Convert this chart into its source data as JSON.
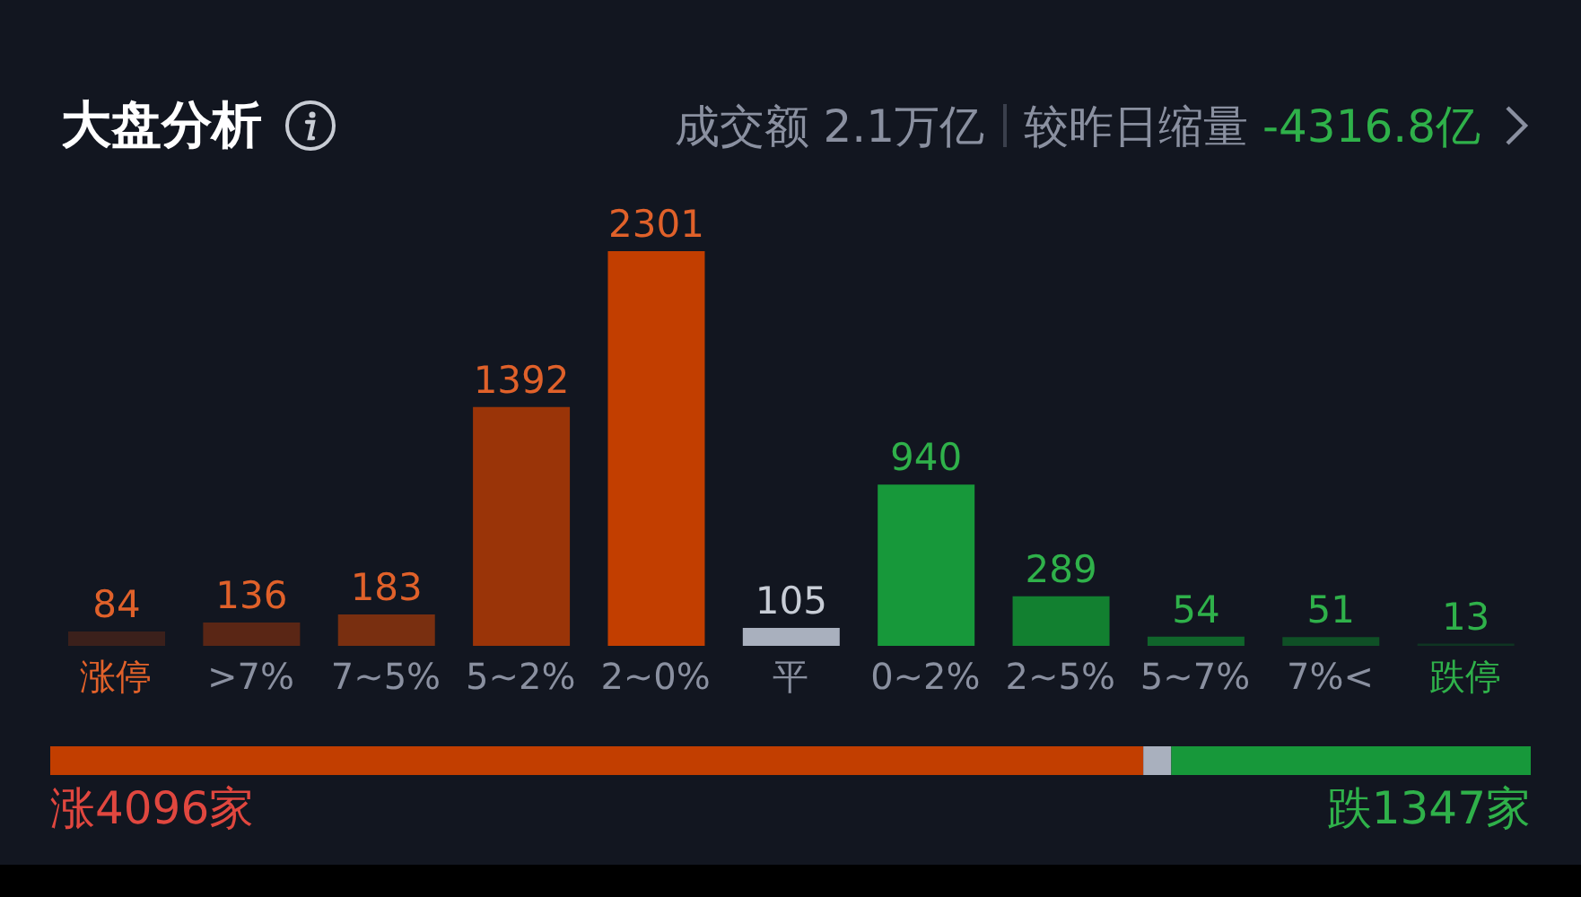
{
  "chart_data": [
    {
      "type": "bar",
      "title": "大盘分析",
      "subtitle": "成交额 2.1万亿",
      "annotations": [
        "较昨日缩量",
        "-4316.8亿"
      ],
      "categories": [
        "涨停",
        ">7%",
        "7~5%",
        "5~2%",
        "2~0%",
        "平",
        "0~2%",
        "2~5%",
        "5~7%",
        "7%<",
        "跌停"
      ],
      "values": [
        84,
        136,
        183,
        1392,
        2301,
        105,
        940,
        289,
        54,
        51,
        13
      ],
      "colors": [
        "#3b201b",
        "#5a2615",
        "#792f10",
        "#9a3408",
        "#c23e00",
        "#a9b0be",
        "#17983a",
        "#128030",
        "#10652b",
        "#0f5026",
        "#0f3522"
      ],
      "data_labels": true
    },
    {
      "type": "bar",
      "orientation": "horizontal",
      "stacked": true,
      "categories": [
        null
      ],
      "series": [
        {
          "color": "#c23e00",
          "values": [
            4096
          ],
          "value_labels": [
            "涨4096家"
          ]
        },
        {
          "color": "#a9b0be",
          "values": [
            105
          ],
          "value_labels": [
            null
          ]
        },
        {
          "color": "#17983a",
          "values": [
            1347
          ],
          "value_labels": [
            "跌1347家"
          ]
        }
      ]
    }
  ]
}
